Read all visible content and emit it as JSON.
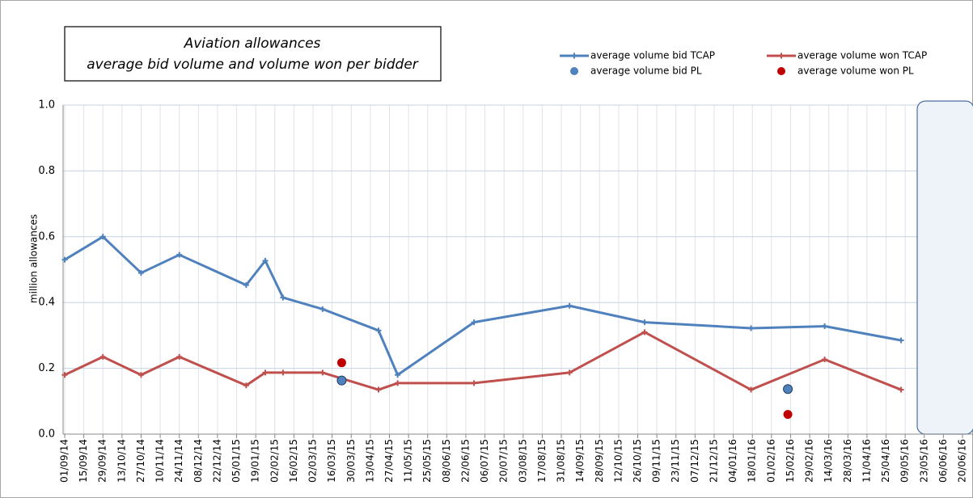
{
  "chart_data": {
    "type": "line",
    "title": [
      "Aviation allowances",
      "average bid volume and volume won per bidder"
    ],
    "y_label": "million allowances",
    "ylim": [
      0,
      1.0
    ],
    "yticks": [
      {
        "value": 0,
        "label": "0.0"
      },
      0.2,
      0.4,
      0.6,
      0.8,
      {
        "value": 1.0,
        "label": "1.0"
      }
    ],
    "xlim": [
      "01/09/14",
      "20/06/16"
    ],
    "xticks": [
      "01/09/14",
      "15/09/14",
      "29/09/14",
      "13/10/14",
      "27/10/14",
      "10/11/14",
      "24/11/14",
      "08/12/14",
      "22/12/14",
      "05/01/15",
      "19/01/15",
      "02/02/15",
      "16/02/15",
      "02/03/15",
      "16/03/15",
      "30/03/15",
      "13/04/15",
      "27/04/15",
      "11/05/15",
      "25/05/15",
      "08/06/15",
      "22/06/15",
      "06/07/15",
      "20/07/15",
      "03/08/15",
      "17/08/15",
      "31/08/15",
      "14/09/15",
      "28/09/15",
      "12/10/15",
      "26/10/15",
      "09/11/15",
      "23/11/15",
      "07/12/15",
      "21/12/15",
      "04/01/16",
      "18/01/16",
      "01/02/16",
      "15/02/16",
      "29/02/16",
      "14/03/16",
      "28/03/16",
      "11/04/16",
      "25/04/16",
      "09/05/16",
      "23/05/16",
      "06/06/16",
      "20/06/16"
    ],
    "grid": true,
    "series": [
      {
        "name": "average volume bid TCAP",
        "color": "#4f81bd",
        "style": "line",
        "x": [
          "01/09/14",
          "29/09/14",
          "27/10/14",
          "24/11/14",
          "12/01/15",
          "26/01/15",
          "08/02/15",
          "09/03/15",
          "19/04/15",
          "03/05/15",
          "28/06/15",
          "06/09/15",
          "31/10/15",
          "17/01/16",
          "11/03/16",
          "06/05/16"
        ],
        "values": [
          0.53,
          0.6,
          0.49,
          0.545,
          0.453,
          0.527,
          0.415,
          0.38,
          0.315,
          0.18,
          0.34,
          0.39,
          0.34,
          0.322,
          0.328,
          0.285
        ]
      },
      {
        "name": "average volume won TCAP",
        "color": "#c0504d",
        "style": "line",
        "x": [
          "01/09/14",
          "29/09/14",
          "27/10/14",
          "24/11/14",
          "12/01/15",
          "26/01/15",
          "08/02/15",
          "09/03/15",
          "19/04/15",
          "03/05/15",
          "28/06/15",
          "06/09/15",
          "31/10/15",
          "17/01/16",
          "11/03/16",
          "06/05/16"
        ],
        "values": [
          0.18,
          0.235,
          0.18,
          0.235,
          0.148,
          0.187,
          0.187,
          0.187,
          0.135,
          0.155,
          0.155,
          0.187,
          0.31,
          0.135,
          0.227,
          0.135
        ]
      },
      {
        "name": "average volume bid PL",
        "color": "#4f81bd",
        "style": "dot",
        "x": [
          "23/03/15",
          "13/02/16"
        ],
        "values": [
          0.163,
          0.137
        ]
      },
      {
        "name": "average volume won PL",
        "color": "#c00000",
        "style": "dot",
        "x": [
          "23/03/15",
          "13/02/16"
        ],
        "values": [
          0.217,
          0.06
        ]
      }
    ]
  }
}
